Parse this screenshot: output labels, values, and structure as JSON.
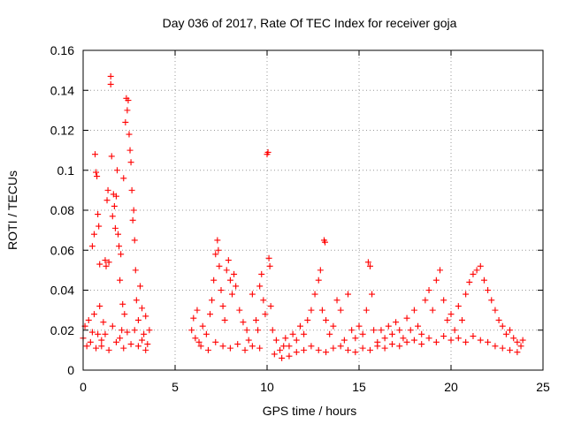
{
  "chart_data": {
    "type": "scatter",
    "title": "Day 036 of 2017, Rate Of TEC Index for receiver goja",
    "xlabel": "GPS time / hours",
    "ylabel": "ROTI / TECUs",
    "xlim": [
      0,
      25
    ],
    "ylim": [
      0,
      0.16
    ],
    "x_ticks": [
      0,
      5,
      10,
      15,
      20,
      25
    ],
    "x_tick_labels": [
      "0",
      "5",
      "10",
      "15",
      "20",
      "25"
    ],
    "y_ticks": [
      0,
      0.02,
      0.04,
      0.06,
      0.08,
      0.1,
      0.12,
      0.14,
      0.16
    ],
    "y_tick_labels": [
      "0",
      "0.02",
      "0.04",
      "0.06",
      "0.08",
      "0.1",
      "0.12",
      "0.14",
      "0.16"
    ],
    "grid": true,
    "marker": "plus",
    "color": "#ff0000",
    "series": [
      {
        "name": "ROTI",
        "points": [
          [
            0.0,
            0.016
          ],
          [
            0.1,
            0.022
          ],
          [
            0.2,
            0.012
          ],
          [
            0.3,
            0.025
          ],
          [
            0.4,
            0.014
          ],
          [
            0.5,
            0.019
          ],
          [
            0.6,
            0.028
          ],
          [
            0.7,
            0.011
          ],
          [
            0.8,
            0.018
          ],
          [
            0.9,
            0.032
          ],
          [
            0.5,
            0.062
          ],
          [
            0.6,
            0.068
          ],
          [
            0.65,
            0.108
          ],
          [
            0.7,
            0.099
          ],
          [
            0.75,
            0.097
          ],
          [
            0.8,
            0.078
          ],
          [
            0.85,
            0.072
          ],
          [
            0.9,
            0.053
          ],
          [
            1.0,
            0.015
          ],
          [
            1.1,
            0.024
          ],
          [
            1.2,
            0.055
          ],
          [
            1.25,
            0.052
          ],
          [
            1.3,
            0.085
          ],
          [
            1.35,
            0.09
          ],
          [
            1.4,
            0.054
          ],
          [
            1.5,
            0.147
          ],
          [
            1.5,
            0.143
          ],
          [
            1.55,
            0.107
          ],
          [
            1.6,
            0.077
          ],
          [
            1.65,
            0.088
          ],
          [
            1.7,
            0.082
          ],
          [
            1.75,
            0.071
          ],
          [
            1.8,
            0.087
          ],
          [
            1.85,
            0.1
          ],
          [
            1.9,
            0.068
          ],
          [
            1.95,
            0.062
          ],
          [
            2.0,
            0.045
          ],
          [
            2.05,
            0.058
          ],
          [
            2.1,
            0.02
          ],
          [
            2.15,
            0.033
          ],
          [
            2.2,
            0.096
          ],
          [
            2.25,
            0.028
          ],
          [
            2.3,
            0.124
          ],
          [
            2.35,
            0.136
          ],
          [
            2.4,
            0.13
          ],
          [
            2.45,
            0.135
          ],
          [
            2.5,
            0.118
          ],
          [
            2.55,
            0.11
          ],
          [
            2.6,
            0.104
          ],
          [
            2.65,
            0.09
          ],
          [
            2.7,
            0.075
          ],
          [
            2.75,
            0.08
          ],
          [
            2.8,
            0.065
          ],
          [
            2.85,
            0.05
          ],
          [
            2.9,
            0.035
          ],
          [
            3.0,
            0.025
          ],
          [
            3.1,
            0.042
          ],
          [
            3.2,
            0.031
          ],
          [
            3.3,
            0.018
          ],
          [
            3.4,
            0.027
          ],
          [
            3.5,
            0.013
          ],
          [
            3.6,
            0.02
          ],
          [
            1.0,
            0.012
          ],
          [
            1.2,
            0.018
          ],
          [
            1.4,
            0.01
          ],
          [
            1.6,
            0.022
          ],
          [
            1.8,
            0.014
          ],
          [
            2.0,
            0.016
          ],
          [
            2.2,
            0.011
          ],
          [
            2.4,
            0.019
          ],
          [
            2.6,
            0.013
          ],
          [
            2.8,
            0.02
          ],
          [
            3.0,
            0.012
          ],
          [
            3.2,
            0.015
          ],
          [
            3.4,
            0.01
          ],
          [
            5.9,
            0.02
          ],
          [
            6.0,
            0.026
          ],
          [
            6.1,
            0.016
          ],
          [
            6.2,
            0.03
          ],
          [
            6.3,
            0.014
          ],
          [
            6.5,
            0.022
          ],
          [
            6.7,
            0.018
          ],
          [
            6.9,
            0.028
          ],
          [
            7.0,
            0.035
          ],
          [
            7.1,
            0.045
          ],
          [
            7.2,
            0.058
          ],
          [
            7.3,
            0.065
          ],
          [
            7.35,
            0.06
          ],
          [
            7.4,
            0.052
          ],
          [
            7.5,
            0.04
          ],
          [
            7.6,
            0.032
          ],
          [
            7.7,
            0.025
          ],
          [
            7.8,
            0.05
          ],
          [
            7.9,
            0.055
          ],
          [
            8.0,
            0.045
          ],
          [
            8.1,
            0.038
          ],
          [
            8.2,
            0.048
          ],
          [
            8.3,
            0.042
          ],
          [
            8.5,
            0.03
          ],
          [
            8.7,
            0.024
          ],
          [
            8.9,
            0.02
          ],
          [
            9.0,
            0.015
          ],
          [
            9.2,
            0.038
          ],
          [
            9.4,
            0.025
          ],
          [
            9.5,
            0.02
          ],
          [
            9.6,
            0.042
          ],
          [
            9.7,
            0.048
          ],
          [
            9.8,
            0.035
          ],
          [
            9.9,
            0.028
          ],
          [
            10.0,
            0.108
          ],
          [
            10.05,
            0.109
          ],
          [
            10.1,
            0.056
          ],
          [
            10.15,
            0.052
          ],
          [
            10.2,
            0.032
          ],
          [
            10.3,
            0.02
          ],
          [
            10.5,
            0.015
          ],
          [
            10.7,
            0.01
          ],
          [
            10.9,
            0.012
          ],
          [
            11.0,
            0.016
          ],
          [
            11.2,
            0.012
          ],
          [
            11.4,
            0.018
          ],
          [
            11.6,
            0.015
          ],
          [
            11.8,
            0.022
          ],
          [
            12.0,
            0.018
          ],
          [
            12.2,
            0.025
          ],
          [
            12.4,
            0.03
          ],
          [
            12.6,
            0.038
          ],
          [
            12.8,
            0.045
          ],
          [
            12.9,
            0.05
          ],
          [
            13.0,
            0.03
          ],
          [
            13.1,
            0.065
          ],
          [
            13.15,
            0.064
          ],
          [
            13.2,
            0.025
          ],
          [
            13.4,
            0.018
          ],
          [
            13.6,
            0.022
          ],
          [
            13.8,
            0.035
          ],
          [
            14.0,
            0.03
          ],
          [
            14.2,
            0.015
          ],
          [
            14.4,
            0.038
          ],
          [
            14.6,
            0.02
          ],
          [
            14.8,
            0.016
          ],
          [
            15.0,
            0.022
          ],
          [
            15.2,
            0.018
          ],
          [
            15.4,
            0.03
          ],
          [
            15.5,
            0.054
          ],
          [
            15.6,
            0.052
          ],
          [
            15.7,
            0.038
          ],
          [
            15.8,
            0.02
          ],
          [
            16.0,
            0.014
          ],
          [
            16.2,
            0.02
          ],
          [
            16.4,
            0.016
          ],
          [
            16.6,
            0.022
          ],
          [
            16.8,
            0.018
          ],
          [
            17.0,
            0.024
          ],
          [
            17.2,
            0.02
          ],
          [
            17.4,
            0.016
          ],
          [
            17.6,
            0.026
          ],
          [
            17.8,
            0.02
          ],
          [
            18.0,
            0.03
          ],
          [
            18.2,
            0.022
          ],
          [
            18.4,
            0.018
          ],
          [
            18.6,
            0.035
          ],
          [
            18.8,
            0.04
          ],
          [
            19.0,
            0.03
          ],
          [
            19.2,
            0.045
          ],
          [
            19.4,
            0.05
          ],
          [
            19.6,
            0.035
          ],
          [
            19.8,
            0.025
          ],
          [
            20.0,
            0.028
          ],
          [
            20.2,
            0.02
          ],
          [
            20.4,
            0.032
          ],
          [
            20.6,
            0.025
          ],
          [
            20.8,
            0.038
          ],
          [
            21.0,
            0.044
          ],
          [
            21.2,
            0.048
          ],
          [
            21.4,
            0.05
          ],
          [
            21.6,
            0.052
          ],
          [
            21.8,
            0.045
          ],
          [
            22.0,
            0.04
          ],
          [
            22.2,
            0.035
          ],
          [
            22.4,
            0.03
          ],
          [
            22.6,
            0.025
          ],
          [
            22.8,
            0.022
          ],
          [
            23.0,
            0.018
          ],
          [
            23.2,
            0.02
          ],
          [
            23.4,
            0.016
          ],
          [
            23.6,
            0.014
          ],
          [
            23.8,
            0.012
          ],
          [
            23.9,
            0.015
          ],
          [
            6.4,
            0.012
          ],
          [
            6.8,
            0.01
          ],
          [
            7.2,
            0.014
          ],
          [
            7.6,
            0.012
          ],
          [
            8.0,
            0.011
          ],
          [
            8.4,
            0.013
          ],
          [
            8.8,
            0.01
          ],
          [
            9.2,
            0.012
          ],
          [
            9.6,
            0.011
          ],
          [
            10.4,
            0.008
          ],
          [
            10.8,
            0.006
          ],
          [
            11.2,
            0.007
          ],
          [
            11.6,
            0.009
          ],
          [
            12.0,
            0.01
          ],
          [
            12.4,
            0.012
          ],
          [
            12.8,
            0.01
          ],
          [
            13.2,
            0.009
          ],
          [
            13.6,
            0.011
          ],
          [
            14.0,
            0.012
          ],
          [
            14.4,
            0.01
          ],
          [
            14.8,
            0.009
          ],
          [
            15.2,
            0.011
          ],
          [
            15.6,
            0.01
          ],
          [
            16.0,
            0.012
          ],
          [
            16.4,
            0.011
          ],
          [
            16.8,
            0.013
          ],
          [
            17.2,
            0.012
          ],
          [
            17.6,
            0.014
          ],
          [
            18.0,
            0.015
          ],
          [
            18.4,
            0.013
          ],
          [
            18.8,
            0.016
          ],
          [
            19.2,
            0.014
          ],
          [
            19.6,
            0.017
          ],
          [
            20.0,
            0.015
          ],
          [
            20.4,
            0.016
          ],
          [
            20.8,
            0.014
          ],
          [
            21.2,
            0.017
          ],
          [
            21.6,
            0.015
          ],
          [
            22.0,
            0.014
          ],
          [
            22.4,
            0.012
          ],
          [
            22.8,
            0.011
          ],
          [
            23.2,
            0.01
          ],
          [
            23.6,
            0.009
          ]
        ]
      }
    ]
  }
}
